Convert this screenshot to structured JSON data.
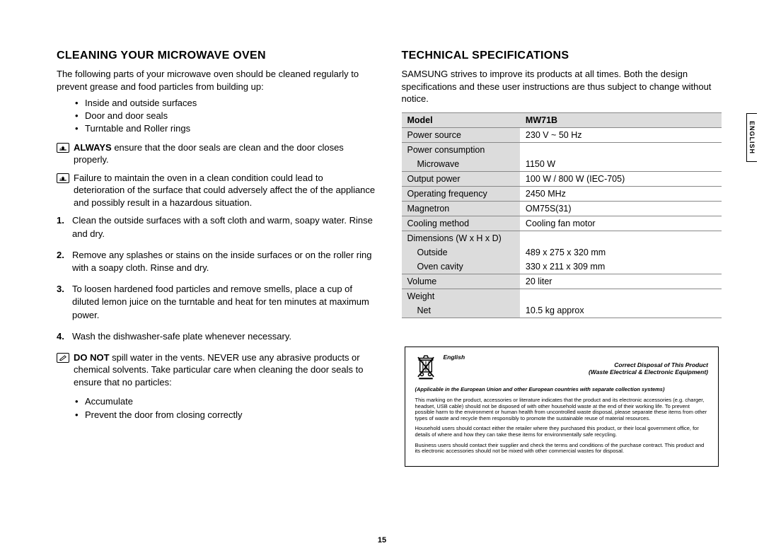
{
  "page_number": "15",
  "side_tab": "ENGLISH",
  "left": {
    "title": "CLEANING YOUR MICROWAVE OVEN",
    "intro": "The following parts of your microwave oven should be cleaned regularly to prevent grease and food particles from building up:",
    "bullets": [
      "Inside and outside surfaces",
      "Door and door seals",
      "Turntable and Roller rings"
    ],
    "note1_strong": "ALWAYS",
    "note1_rest": " ensure that the door seals are clean and the door closes properly.",
    "note2": "Failure to maintain the oven in a clean condition could lead to deterioration of the surface that could adversely affect the of the appliance and possibly result in a hazardous situation.",
    "steps": [
      "Clean the outside surfaces with a soft cloth and warm, soapy water. Rinse and dry.",
      "Remove any splashes or stains on the inside surfaces or on the roller ring with a soapy cloth. Rinse and dry.",
      "To loosen hardened food particles and remove smells, place a cup of diluted lemon juice on the turntable and heat for ten minutes at maximum power.",
      "Wash the dishwasher-safe plate whenever necessary."
    ],
    "note3_strong": "DO NOT",
    "note3_rest": " spill water in the vents. NEVER use any abrasive products or chemical solvents. Take particular care when cleaning the door seals to ensure that no particles:",
    "sub_bullets": [
      "Accumulate",
      "Prevent the door from closing correctly"
    ]
  },
  "right": {
    "title": "TECHNICAL SPECIFICATIONS",
    "intro": "SAMSUNG strives to improve its products at all times. Both the design specifications and these user instructions are thus subject to change without notice.",
    "table": {
      "header_label": "Model",
      "header_value": "MW71B",
      "rows": [
        {
          "label": "Power source",
          "value": "230 V ~ 50 Hz"
        },
        {
          "label": "Power consumption",
          "value": "",
          "nobb": true
        },
        {
          "label": "Microwave",
          "value": "1150 W",
          "sub": true
        },
        {
          "label": "Output power",
          "value": "100 W / 800 W (IEC-705)"
        },
        {
          "label": "Operating frequency",
          "value": "2450 MHz"
        },
        {
          "label": "Magnetron",
          "value": "OM75S(31)"
        },
        {
          "label": "Cooling method",
          "value": "Cooling fan motor"
        },
        {
          "label": "Dimensions (W x H x D)",
          "value": "",
          "nobb": true
        },
        {
          "label": "Outside",
          "value": "489 x 275 x 320 mm",
          "sub": true,
          "nobb": true
        },
        {
          "label": "Oven cavity",
          "value": "330 x 211 x 309 mm",
          "sub": true
        },
        {
          "label": "Volume",
          "value": "20 liter"
        },
        {
          "label": "Weight",
          "value": "",
          "nobb": true
        },
        {
          "label": "Net",
          "value": "10.5 kg approx",
          "sub": true
        }
      ]
    }
  },
  "disposal": {
    "lang": "English",
    "title1": "Correct Disposal of This Product",
    "title2": "(Waste Electrical & Electronic Equipment)",
    "applicable": "(Applicable in the European Union and other European countries with separate collection systems)",
    "p1": "This marking on the product, accessories or literature indicates that the product and its electronic accessories (e.g. charger, headset, USB cable) should not be disposed of with other household waste at the end of their working life. To prevent possible harm to the environment or human health from uncontrolled waste disposal, please separate these items from other types of waste and recycle them responsibly to promote the sustainable reuse of material resources.",
    "p2": "Household users should contact either the retailer where they purchased this product, or their local government office, for details of where and how they can take these items for environmentally safe recycling.",
    "p3": "Business users should contact their supplier and check the terms and conditions of the purchase contract. This product and its electronic accessories should not be mixed with other commercial wastes for disposal."
  }
}
